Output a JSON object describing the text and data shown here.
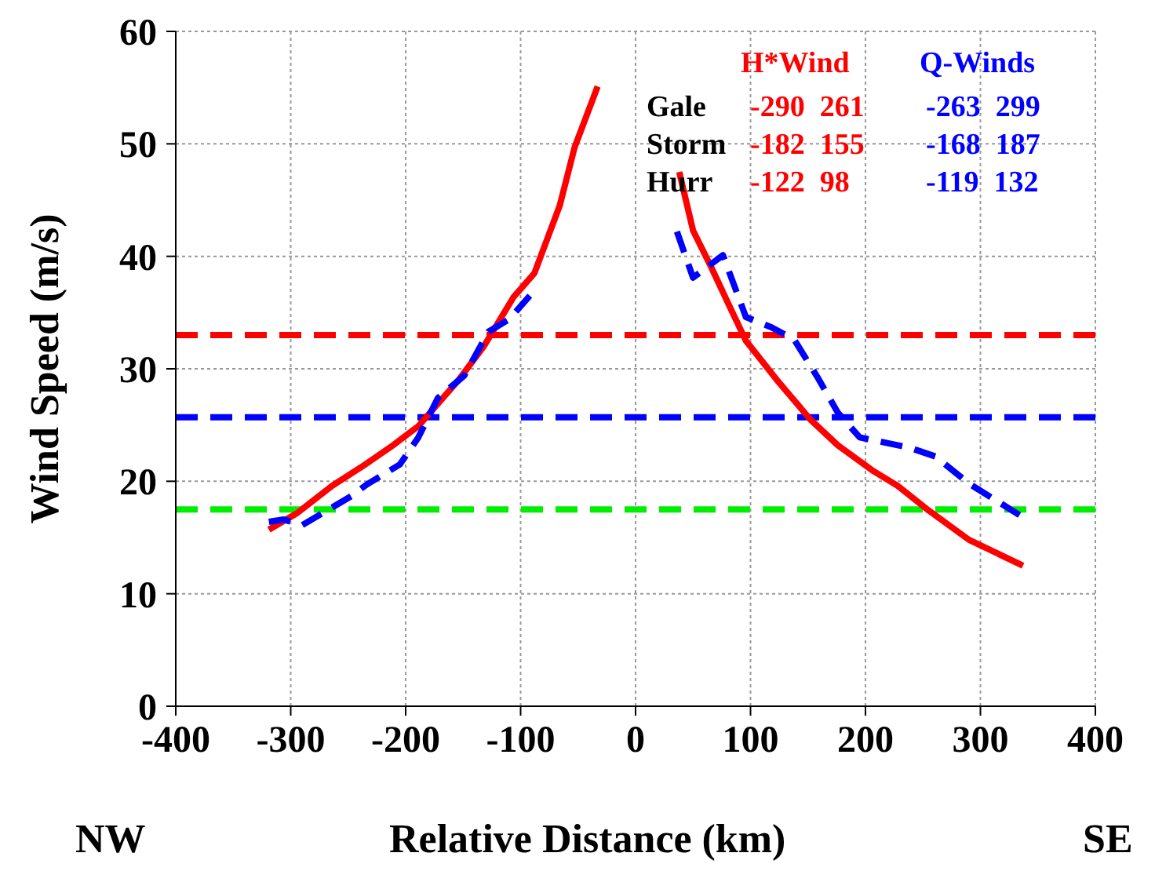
{
  "chart_data": {
    "type": "line",
    "xlabel": "Relative Distance (km)",
    "ylabel": "Wind Speed (m/s)",
    "xlim": [
      -400,
      400
    ],
    "xticks": [
      -400,
      -300,
      -200,
      -100,
      0,
      100,
      200,
      300,
      400
    ],
    "ylim": [
      0,
      60
    ],
    "yticks": [
      0,
      10,
      20,
      30,
      40,
      50,
      60
    ],
    "grid": true,
    "legend": false,
    "marker": "none",
    "series": [
      {
        "name": "H*Wind",
        "color": "#ff0000",
        "line_style": "solid",
        "x": [
          -319,
          -294,
          -264,
          -238,
          -211,
          -189,
          -154,
          -132,
          -106,
          -88,
          -66,
          -53,
          -33,
          0,
          38,
          50,
          66,
          82,
          96,
          123,
          152,
          176,
          207,
          228,
          255,
          290,
          337
        ],
        "values": [
          15.7,
          17.2,
          19.6,
          21.3,
          23.2,
          24.9,
          29.0,
          32.0,
          36.4,
          38.5,
          44.5,
          49.7,
          55.1,
          null,
          47.5,
          42.3,
          39.0,
          35.5,
          32.5,
          29.0,
          25.5,
          23.2,
          20.9,
          19.6,
          17.4,
          14.8,
          12.5
        ]
      },
      {
        "name": "Q-Winds",
        "color": "#0000ff",
        "line_style": "dashed",
        "x": [
          -319,
          -306,
          -290,
          -247,
          -234,
          -205,
          -189,
          -172,
          -149,
          -128,
          -110,
          -92,
          0,
          36,
          50,
          76,
          96,
          118,
          138,
          158,
          176,
          195,
          238,
          261,
          290,
          334
        ],
        "values": [
          16.4,
          16.6,
          16.1,
          18.7,
          19.7,
          21.5,
          23.9,
          27.4,
          29.4,
          33.3,
          34.4,
          36.5,
          null,
          42.2,
          38.1,
          40.1,
          34.6,
          33.7,
          32.6,
          29.3,
          26.1,
          23.9,
          23.0,
          22.2,
          19.8,
          17.0
        ]
      }
    ],
    "ref_lines": [
      {
        "axis": "y",
        "value": 33,
        "color": "#ff0000",
        "line_style": "dashed"
      },
      {
        "axis": "y",
        "value": 25.7,
        "color": "#0000ff",
        "line_style": "dashed"
      },
      {
        "axis": "y",
        "value": 17.5,
        "color": "#00ee00",
        "line_style": "dashed"
      }
    ],
    "annotations": [
      "Gale",
      "Storm",
      "Hurr",
      "-290  261",
      "-182  155",
      "-122  98",
      "-263  299",
      "-168  187",
      "-119  132",
      "NW",
      "SE"
    ]
  }
}
